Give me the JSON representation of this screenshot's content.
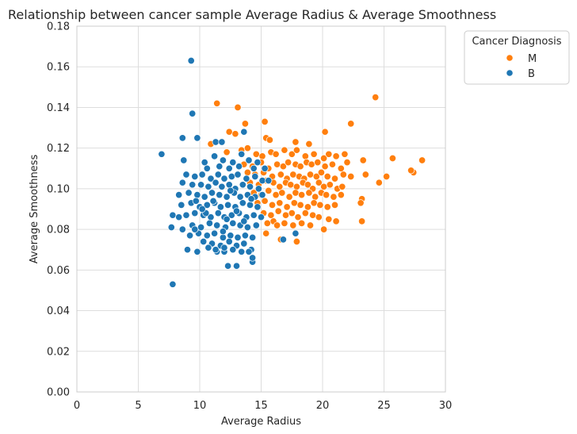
{
  "chart_data": {
    "type": "scatter",
    "title": "Relationship between cancer sample Average Radius & Average Smoothness",
    "xlabel": "Average Radius",
    "ylabel": "Average Smoothness",
    "xlim": [
      0,
      30
    ],
    "ylim": [
      0,
      0.18
    ],
    "xticks": [
      "0",
      "5",
      "10",
      "15",
      "20",
      "25",
      "30"
    ],
    "yticks": [
      "0.00",
      "0.02",
      "0.04",
      "0.06",
      "0.08",
      "0.10",
      "0.12",
      "0.14",
      "0.16",
      "0.18"
    ],
    "grid": true,
    "legend": {
      "title": "Cancer Diagnosis",
      "placement": "outside-top-right",
      "entries": [
        {
          "label": "M",
          "color": "#ff7f0e"
        },
        {
          "label": "B",
          "color": "#1f77b4"
        }
      ]
    },
    "series": [
      {
        "name": "M",
        "color": "#ff7f0e",
        "points": [
          [
            11.4,
            0.142
          ],
          [
            13.1,
            0.14
          ],
          [
            15.3,
            0.133
          ],
          [
            12.4,
            0.128
          ],
          [
            12.9,
            0.127
          ],
          [
            13.7,
            0.132
          ],
          [
            15.4,
            0.125
          ],
          [
            15.7,
            0.124
          ],
          [
            17.8,
            0.123
          ],
          [
            18.9,
            0.122
          ],
          [
            20.2,
            0.128
          ],
          [
            22.3,
            0.132
          ],
          [
            24.3,
            0.145
          ],
          [
            10.9,
            0.122
          ],
          [
            12.2,
            0.118
          ],
          [
            13.4,
            0.119
          ],
          [
            13.9,
            0.12
          ],
          [
            14.6,
            0.117
          ],
          [
            15.1,
            0.116
          ],
          [
            15.8,
            0.118
          ],
          [
            16.2,
            0.117
          ],
          [
            16.9,
            0.119
          ],
          [
            17.5,
            0.117
          ],
          [
            17.9,
            0.119
          ],
          [
            18.6,
            0.116
          ],
          [
            19.3,
            0.117
          ],
          [
            20.1,
            0.115
          ],
          [
            20.5,
            0.117
          ],
          [
            21.1,
            0.116
          ],
          [
            21.8,
            0.117
          ],
          [
            23.3,
            0.114
          ],
          [
            25.7,
            0.115
          ],
          [
            28.1,
            0.114
          ],
          [
            27.4,
            0.108
          ],
          [
            27.2,
            0.109
          ],
          [
            13.6,
            0.112
          ],
          [
            14.3,
            0.111
          ],
          [
            15.0,
            0.113
          ],
          [
            15.6,
            0.11
          ],
          [
            16.3,
            0.112
          ],
          [
            16.8,
            0.111
          ],
          [
            17.2,
            0.113
          ],
          [
            17.8,
            0.112
          ],
          [
            18.2,
            0.111
          ],
          [
            18.7,
            0.113
          ],
          [
            19.1,
            0.112
          ],
          [
            19.6,
            0.113
          ],
          [
            20.2,
            0.111
          ],
          [
            20.8,
            0.112
          ],
          [
            21.5,
            0.11
          ],
          [
            22.0,
            0.113
          ],
          [
            23.5,
            0.107
          ],
          [
            25.2,
            0.106
          ],
          [
            24.6,
            0.103
          ],
          [
            13.9,
            0.108
          ],
          [
            14.5,
            0.107
          ],
          [
            15.2,
            0.108
          ],
          [
            15.9,
            0.106
          ],
          [
            16.6,
            0.107
          ],
          [
            17.1,
            0.105
          ],
          [
            17.6,
            0.107
          ],
          [
            18.1,
            0.106
          ],
          [
            18.5,
            0.105
          ],
          [
            19.0,
            0.107
          ],
          [
            19.5,
            0.106
          ],
          [
            19.9,
            0.108
          ],
          [
            20.4,
            0.106
          ],
          [
            21.0,
            0.105
          ],
          [
            21.7,
            0.107
          ],
          [
            22.3,
            0.106
          ],
          [
            14.1,
            0.103
          ],
          [
            14.8,
            0.102
          ],
          [
            15.4,
            0.104
          ],
          [
            16.0,
            0.103
          ],
          [
            16.5,
            0.101
          ],
          [
            17.0,
            0.103
          ],
          [
            17.4,
            0.102
          ],
          [
            17.9,
            0.101
          ],
          [
            18.4,
            0.103
          ],
          [
            18.8,
            0.102
          ],
          [
            19.2,
            0.1
          ],
          [
            19.7,
            0.103
          ],
          [
            20.1,
            0.101
          ],
          [
            20.6,
            0.102
          ],
          [
            21.2,
            0.1
          ],
          [
            21.6,
            0.101
          ],
          [
            14.4,
            0.098
          ],
          [
            15.0,
            0.097
          ],
          [
            15.6,
            0.099
          ],
          [
            16.2,
            0.097
          ],
          [
            16.7,
            0.098
          ],
          [
            17.3,
            0.096
          ],
          [
            17.8,
            0.098
          ],
          [
            18.3,
            0.097
          ],
          [
            18.9,
            0.098
          ],
          [
            19.4,
            0.096
          ],
          [
            19.9,
            0.098
          ],
          [
            20.3,
            0.097
          ],
          [
            20.9,
            0.096
          ],
          [
            21.5,
            0.097
          ],
          [
            23.2,
            0.095
          ],
          [
            23.1,
            0.093
          ],
          [
            14.7,
            0.093
          ],
          [
            15.3,
            0.094
          ],
          [
            15.9,
            0.092
          ],
          [
            16.5,
            0.093
          ],
          [
            17.1,
            0.091
          ],
          [
            17.7,
            0.093
          ],
          [
            18.2,
            0.092
          ],
          [
            18.8,
            0.091
          ],
          [
            19.3,
            0.093
          ],
          [
            19.8,
            0.092
          ],
          [
            20.4,
            0.091
          ],
          [
            21.0,
            0.092
          ],
          [
            16.0,
            0.084
          ],
          [
            15.2,
            0.088
          ],
          [
            15.8,
            0.087
          ],
          [
            16.4,
            0.089
          ],
          [
            17.0,
            0.087
          ],
          [
            17.5,
            0.088
          ],
          [
            18.0,
            0.086
          ],
          [
            18.6,
            0.088
          ],
          [
            19.2,
            0.087
          ],
          [
            19.7,
            0.086
          ],
          [
            20.5,
            0.085
          ],
          [
            21.1,
            0.084
          ],
          [
            23.2,
            0.084
          ],
          [
            15.5,
            0.083
          ],
          [
            16.3,
            0.082
          ],
          [
            16.9,
            0.083
          ],
          [
            17.6,
            0.082
          ],
          [
            18.3,
            0.083
          ],
          [
            19.0,
            0.082
          ],
          [
            20.1,
            0.08
          ],
          [
            15.4,
            0.078
          ],
          [
            16.6,
            0.075
          ],
          [
            17.9,
            0.074
          ]
        ]
      },
      {
        "name": "B",
        "color": "#1f77b4",
        "points": [
          [
            9.3,
            0.163
          ],
          [
            9.4,
            0.137
          ],
          [
            7.8,
            0.053
          ],
          [
            6.9,
            0.117
          ],
          [
            8.6,
            0.125
          ],
          [
            9.8,
            0.125
          ],
          [
            11.3,
            0.123
          ],
          [
            11.8,
            0.123
          ],
          [
            13.6,
            0.128
          ],
          [
            12.3,
            0.062
          ],
          [
            13.0,
            0.062
          ],
          [
            14.3,
            0.064
          ],
          [
            14.3,
            0.066
          ],
          [
            9.0,
            0.07
          ],
          [
            9.8,
            0.069
          ],
          [
            11.4,
            0.069
          ],
          [
            12.0,
            0.069
          ],
          [
            8.7,
            0.114
          ],
          [
            10.4,
            0.113
          ],
          [
            11.2,
            0.116
          ],
          [
            11.9,
            0.114
          ],
          [
            12.7,
            0.113
          ],
          [
            13.4,
            0.117
          ],
          [
            14.0,
            0.114
          ],
          [
            14.7,
            0.113
          ],
          [
            10.6,
            0.11
          ],
          [
            11.6,
            0.111
          ],
          [
            12.4,
            0.11
          ],
          [
            13.2,
            0.111
          ],
          [
            14.4,
            0.11
          ],
          [
            15.3,
            0.11
          ],
          [
            8.9,
            0.107
          ],
          [
            9.6,
            0.106
          ],
          [
            10.2,
            0.107
          ],
          [
            10.9,
            0.105
          ],
          [
            11.5,
            0.107
          ],
          [
            12.0,
            0.105
          ],
          [
            12.6,
            0.106
          ],
          [
            13.1,
            0.107
          ],
          [
            13.8,
            0.105
          ],
          [
            14.5,
            0.106
          ],
          [
            15.1,
            0.104
          ],
          [
            15.6,
            0.104
          ],
          [
            8.6,
            0.103
          ],
          [
            9.4,
            0.102
          ],
          [
            10.1,
            0.102
          ],
          [
            10.7,
            0.101
          ],
          [
            11.3,
            0.103
          ],
          [
            11.8,
            0.101
          ],
          [
            12.4,
            0.102
          ],
          [
            12.9,
            0.1
          ],
          [
            13.5,
            0.102
          ],
          [
            14.1,
            0.101
          ],
          [
            14.8,
            0.1
          ],
          [
            8.3,
            0.097
          ],
          [
            9.1,
            0.098
          ],
          [
            9.8,
            0.097
          ],
          [
            10.4,
            0.096
          ],
          [
            11.0,
            0.098
          ],
          [
            11.6,
            0.097
          ],
          [
            12.2,
            0.096
          ],
          [
            12.8,
            0.098
          ],
          [
            13.3,
            0.096
          ],
          [
            13.9,
            0.097
          ],
          [
            14.5,
            0.096
          ],
          [
            15.1,
            0.097
          ],
          [
            8.5,
            0.092
          ],
          [
            9.3,
            0.093
          ],
          [
            10.0,
            0.091
          ],
          [
            10.6,
            0.092
          ],
          [
            11.2,
            0.093
          ],
          [
            11.7,
            0.091
          ],
          [
            12.3,
            0.092
          ],
          [
            12.9,
            0.091
          ],
          [
            13.5,
            0.093
          ],
          [
            14.1,
            0.092
          ],
          [
            14.7,
            0.091
          ],
          [
            8.9,
            0.087
          ],
          [
            9.6,
            0.088
          ],
          [
            10.3,
            0.087
          ],
          [
            10.9,
            0.086
          ],
          [
            11.5,
            0.088
          ],
          [
            12.0,
            0.086
          ],
          [
            12.6,
            0.087
          ],
          [
            13.2,
            0.088
          ],
          [
            13.8,
            0.086
          ],
          [
            14.4,
            0.087
          ],
          [
            15.0,
            0.086
          ],
          [
            7.8,
            0.087
          ],
          [
            8.3,
            0.086
          ],
          [
            9.4,
            0.082
          ],
          [
            10.1,
            0.081
          ],
          [
            10.8,
            0.083
          ],
          [
            11.4,
            0.082
          ],
          [
            12.1,
            0.081
          ],
          [
            12.7,
            0.083
          ],
          [
            13.3,
            0.082
          ],
          [
            13.9,
            0.081
          ],
          [
            14.6,
            0.082
          ],
          [
            7.7,
            0.081
          ],
          [
            8.6,
            0.08
          ],
          [
            9.2,
            0.077
          ],
          [
            9.9,
            0.078
          ],
          [
            10.6,
            0.077
          ],
          [
            11.2,
            0.078
          ],
          [
            11.9,
            0.076
          ],
          [
            12.5,
            0.077
          ],
          [
            13.1,
            0.076
          ],
          [
            13.7,
            0.077
          ],
          [
            14.3,
            0.076
          ],
          [
            9.6,
            0.08
          ],
          [
            10.3,
            0.074
          ],
          [
            11.0,
            0.073
          ],
          [
            11.7,
            0.072
          ],
          [
            12.4,
            0.074
          ],
          [
            13.0,
            0.072
          ],
          [
            13.6,
            0.073
          ],
          [
            14.2,
            0.07
          ],
          [
            16.8,
            0.075
          ],
          [
            17.8,
            0.078
          ],
          [
            10.7,
            0.071
          ],
          [
            11.3,
            0.07
          ],
          [
            12.0,
            0.071
          ],
          [
            12.7,
            0.07
          ],
          [
            13.4,
            0.069
          ],
          [
            14.0,
            0.069
          ],
          [
            10.5,
            0.088
          ],
          [
            11.1,
            0.094
          ],
          [
            12.5,
            0.099
          ],
          [
            13.0,
            0.089
          ],
          [
            13.6,
            0.084
          ],
          [
            14.2,
            0.095
          ],
          [
            11.9,
            0.079
          ],
          [
            12.2,
            0.085
          ],
          [
            10.2,
            0.09
          ],
          [
            9.7,
            0.094
          ]
        ]
      }
    ]
  }
}
